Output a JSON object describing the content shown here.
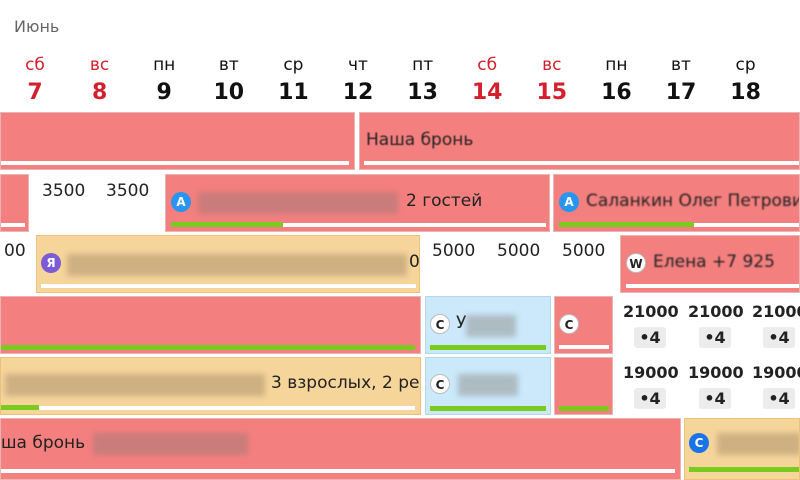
{
  "month": "Июнь",
  "days": [
    {
      "dow": "сб",
      "num": "7",
      "weekend": true
    },
    {
      "dow": "вс",
      "num": "8",
      "weekend": true
    },
    {
      "dow": "пн",
      "num": "9",
      "weekend": false
    },
    {
      "dow": "вт",
      "num": "10",
      "weekend": false
    },
    {
      "dow": "ср",
      "num": "11",
      "weekend": false
    },
    {
      "dow": "чт",
      "num": "12",
      "weekend": false
    },
    {
      "dow": "пт",
      "num": "13",
      "weekend": false
    },
    {
      "dow": "сб",
      "num": "14",
      "weekend": true
    },
    {
      "dow": "вс",
      "num": "15",
      "weekend": true
    },
    {
      "dow": "пн",
      "num": "16",
      "weekend": false
    },
    {
      "dow": "вт",
      "num": "17",
      "weekend": false
    },
    {
      "dow": "ср",
      "num": "18",
      "weekend": false
    }
  ],
  "row1": {
    "text": "Наша бронь"
  },
  "row2": {
    "prices": [
      "3500",
      "3500"
    ],
    "booking_a_source": "A",
    "booking_a_text": "2 гостей",
    "booking_b_source": "A",
    "booking_b_text": "Саланкин Олег Петрович"
  },
  "row3": {
    "price_left": "00",
    "booking_source": "Я",
    "booking_text_tail": "0",
    "prices": [
      "5000",
      "5000",
      "5000"
    ],
    "booking_w_source": "W",
    "booking_w_text": "Елена +7 925"
  },
  "row4": {
    "booking_c1_source": "C",
    "booking_c1_text": "У",
    "booking_c2_source": "C",
    "tiles": [
      {
        "price": "21000",
        "guests": "•4"
      },
      {
        "price": "21000",
        "guests": "•4"
      },
      {
        "price": "21000",
        "guests": "•4"
      }
    ]
  },
  "row5": {
    "booking_text": "3 взрослых, 2 ре",
    "booking_c_source": "C",
    "tiles": [
      {
        "price": "19000",
        "guests": "•4"
      },
      {
        "price": "19000",
        "guests": "•4"
      },
      {
        "price": "19000",
        "guests": "•4"
      }
    ]
  },
  "row6": {
    "booking_text": "ша бронь",
    "booking_c_source": "C"
  }
}
